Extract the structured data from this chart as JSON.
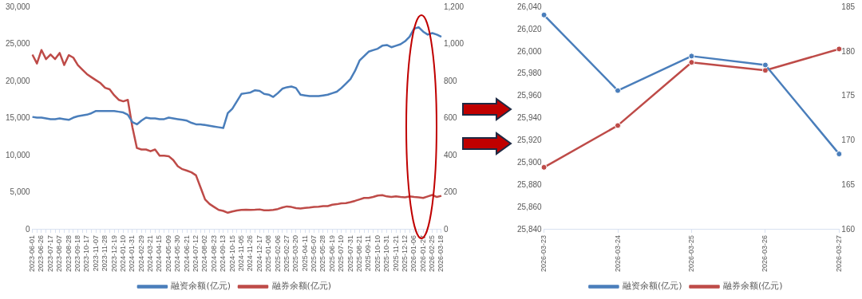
{
  "chart_data": [
    {
      "type": "line",
      "marker": "none",
      "legend": "bottom",
      "grid": false,
      "categories": [
        "2023-06-01",
        null,
        "2023-06-26",
        null,
        "2023-07-17",
        null,
        "2023-08-07",
        null,
        "2023-08-28",
        null,
        "2023-09-18",
        null,
        "2023-10-17",
        null,
        "2023-11-07",
        null,
        "2023-11-28",
        null,
        "2023-12-19",
        null,
        "2024-01-10",
        null,
        "2024-01-31",
        null,
        "2024-02-29",
        null,
        "2024-03-21",
        null,
        "2024-04-15",
        null,
        "2024-05-09",
        null,
        "2024-05-30",
        null,
        "2024-06-21",
        null,
        "2024-07-12",
        null,
        "2024-08-02",
        null,
        "2024-08-23",
        null,
        "2024-09-13",
        null,
        "2024-10-15",
        null,
        "2024-11-05",
        null,
        "2024-11-26",
        null,
        "2024-12-17",
        null,
        "2025-01-08",
        null,
        "2025-02-06",
        null,
        "2025-02-27",
        null,
        "2025-03-20",
        null,
        "2025-04-11",
        null,
        "2025-05-07",
        null,
        "2025-05-28",
        null,
        "2025-06-19",
        null,
        "2025-07-10",
        null,
        "2025-07-31",
        null,
        "2025-08-21",
        null,
        "2025-09-11",
        null,
        "2025-10-10",
        null,
        "2025-10-31",
        null,
        "2025-11-21",
        null,
        "2025-12-12",
        null,
        "2026-01-06",
        null,
        "2026-01-27",
        null,
        "2026-02-25",
        null,
        "2026-03-18"
      ],
      "series": [
        {
          "name": "融资余额(亿元)",
          "color": "#4a7ebb",
          "values": [
            15200,
            15100,
            15100,
            15000,
            14900,
            14900,
            15000,
            14900,
            14800,
            15100,
            15300,
            15400,
            15500,
            15700,
            16000,
            16000,
            16000,
            16000,
            16000,
            15900,
            15800,
            15500,
            14500,
            14200,
            14700,
            15100,
            15000,
            15000,
            14900,
            14900,
            15100,
            15000,
            14900,
            14800,
            14700,
            14400,
            14200,
            14200,
            14100,
            14000,
            13900,
            13800,
            13700,
            15700,
            16300,
            17300,
            18300,
            18400,
            18500,
            18800,
            18700,
            18300,
            18200,
            17900,
            18400,
            19000,
            19200,
            19300,
            19100,
            18200,
            18100,
            18000,
            18000,
            18000,
            18100,
            18200,
            18400,
            18600,
            19100,
            19700,
            20300,
            21400,
            22800,
            23400,
            24000,
            24200,
            24400,
            24800,
            24900,
            24600,
            24800,
            25000,
            25400,
            26000,
            27100,
            27300,
            26700,
            26300,
            26500,
            26300,
            26000
          ]
        },
        {
          "name": "融券余额(亿元)",
          "color": "#be4b48",
          "axis": "y2",
          "values": [
            944,
            896,
            969,
            920,
            945,
            920,
            953,
            888,
            941,
            928,
            888,
            863,
            839,
            822,
            806,
            790,
            765,
            757,
            725,
            700,
            692,
            700,
            554,
            440,
            432,
            432,
            423,
            432,
            399,
            399,
            396,
            375,
            342,
            326,
            318,
            309,
            293,
            228,
            163,
            138,
            122,
            106,
            101,
            91,
            98,
            103,
            106,
            107,
            106,
            107,
            109,
            104,
            104,
            106,
            111,
            119,
            125,
            122,
            116,
            114,
            117,
            119,
            122,
            124,
            127,
            127,
            134,
            137,
            142,
            143,
            148,
            155,
            163,
            171,
            171,
            176,
            184,
            186,
            179,
            176,
            179,
            176,
            174,
            179,
            176,
            174,
            171,
            179,
            187,
            176,
            182
          ]
        }
      ],
      "ylim": [
        0,
        30000
      ],
      "yticks": [
        0,
        {
          "value": 5000,
          "label": "5,000"
        },
        {
          "value": 10000,
          "label": "10,000"
        },
        {
          "value": 15000,
          "label": "15,000"
        },
        {
          "value": 20000,
          "label": "20,000"
        },
        {
          "value": 25000,
          "label": "25,000"
        },
        {
          "value": 30000,
          "label": "30,000"
        }
      ],
      "y2lim": [
        0,
        1200
      ],
      "y2ticks": [
        0,
        200,
        400,
        600,
        800,
        {
          "value": 1000,
          "label": "1,000"
        },
        {
          "value": 1200,
          "label": "1,200"
        }
      ]
    },
    {
      "type": "line",
      "marker": "circle",
      "legend": "bottom",
      "grid": false,
      "categories": [
        "2026-03-23",
        "2026-03-24",
        "2026-03-25",
        "2026-03-26",
        "2026-03-27"
      ],
      "series": [
        {
          "name": "融资余额(亿元)",
          "color": "#4a7ebb",
          "values": [
            26033,
            25965,
            25996,
            25988,
            25908
          ]
        },
        {
          "name": "融券余额(亿元)",
          "color": "#be4b48",
          "axis": "y2",
          "values": [
            167.0,
            171.7,
            178.8,
            177.9,
            180.3
          ]
        }
      ],
      "ylim": [
        25840,
        26040
      ],
      "yticks": [
        {
          "value": 25840,
          "label": "25,840"
        },
        {
          "value": 25860,
          "label": "25,860"
        },
        {
          "value": 25880,
          "label": "25,880"
        },
        {
          "value": 25900,
          "label": "25,900"
        },
        {
          "value": 25920,
          "label": "25,920"
        },
        {
          "value": 25940,
          "label": "25,940"
        },
        {
          "value": 25960,
          "label": "25,960"
        },
        {
          "value": 25980,
          "label": "25,980"
        },
        {
          "value": 26000,
          "label": "26,000"
        },
        {
          "value": 26020,
          "label": "26,020"
        },
        {
          "value": 26040,
          "label": "26,040"
        }
      ],
      "y2lim": [
        160,
        185
      ],
      "y2ticks": [
        160,
        165,
        170,
        175,
        180,
        185
      ]
    }
  ]
}
